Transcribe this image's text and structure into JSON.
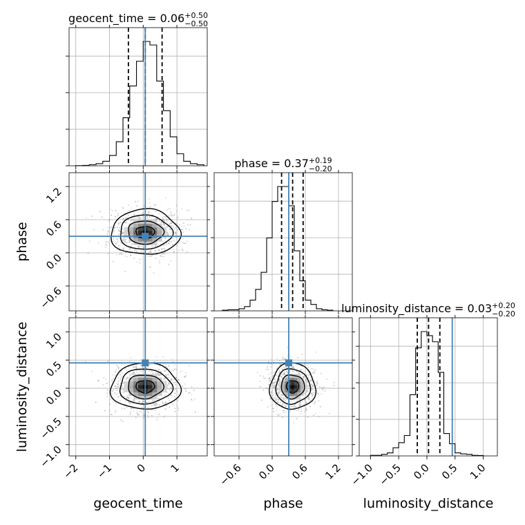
{
  "chart_data": {
    "type": "corner",
    "parameters": [
      "geocent_time",
      "phase",
      "luminosity_distance"
    ],
    "truths": {
      "geocent_time": 0.06,
      "phase": 0.3,
      "luminosity_distance": 0.45
    },
    "axes": {
      "geocent_time": {
        "range": [
          -2.2,
          1.9
        ],
        "ticks": [
          -2,
          -1,
          0,
          1
        ],
        "tick_labels": [
          "−2",
          "−1",
          "0",
          "1"
        ]
      },
      "phase": {
        "range": [
          -1.05,
          1.45
        ],
        "ticks": [
          -0.6,
          0.0,
          0.6,
          1.2
        ],
        "tick_labels": [
          "−0.6",
          "0.0",
          "0.6",
          "1.2"
        ]
      },
      "luminosity_distance": {
        "range": [
          -1.2,
          1.25
        ],
        "ticks": [
          -1.0,
          -0.5,
          0.0,
          0.5,
          1.0
        ],
        "tick_labels": [
          "−1.0",
          "−0.5",
          "0.0",
          "0.5",
          "1.0"
        ]
      }
    },
    "marginals": [
      {
        "parameter": "geocent_time",
        "title": "geocent_time = 0.06",
        "title_sup": "+0.50",
        "title_sub": "−0.50",
        "quantiles": [
          -0.44,
          0.06,
          0.56
        ],
        "bin_edges": [
          -2.0,
          -1.8,
          -1.6,
          -1.4,
          -1.2,
          -1.0,
          -0.8,
          -0.6,
          -0.4,
          -0.2,
          0.0,
          0.2,
          0.4,
          0.6,
          0.8,
          1.0,
          1.2,
          1.4,
          1.6,
          1.8
        ],
        "counts": [
          0.1,
          0.3,
          0.8,
          1.5,
          3.2,
          7.3,
          17,
          34,
          56.5,
          74,
          88,
          85.5,
          60,
          39,
          20.5,
          8.5,
          3.2,
          1.5,
          0.8
        ]
      },
      {
        "parameter": "phase",
        "title": "phase = 0.37",
        "title_sup": "+0.19",
        "title_sub": "−0.20",
        "quantiles": [
          0.17,
          0.37,
          0.56
        ],
        "bin_edges": [
          -0.9,
          -0.8,
          -0.7,
          -0.6,
          -0.5,
          -0.4,
          -0.3,
          -0.2,
          -0.1,
          0.0,
          0.1,
          0.2,
          0.3,
          0.4,
          0.5,
          0.6,
          0.7,
          0.8,
          0.9,
          1.0,
          1.1
        ],
        "counts": [
          0.3,
          0.5,
          0.5,
          1,
          2,
          5,
          10,
          18,
          34,
          51,
          58,
          58,
          49,
          28,
          14,
          5,
          3,
          1,
          0.5,
          0.3
        ]
      },
      {
        "parameter": "luminosity_distance",
        "title": "luminosity_distance = 0.03",
        "title_sup": "+0.20",
        "title_sub": "−0.20",
        "quantiles": [
          -0.17,
          0.03,
          0.23
        ],
        "bin_edges": [
          -1.0,
          -0.9,
          -0.8,
          -0.7,
          -0.6,
          -0.5,
          -0.4,
          -0.3,
          -0.2,
          -0.1,
          0.0,
          0.1,
          0.2,
          0.3,
          0.4,
          0.5,
          0.6,
          0.7,
          0.8,
          0.9,
          1.0
        ],
        "counts": [
          0.3,
          0.3,
          0.8,
          1.5,
          4,
          6.5,
          10,
          30,
          53,
          61,
          59,
          56,
          41,
          11,
          6,
          1.5,
          1,
          0.8,
          0.3,
          0.2
        ]
      }
    ],
    "joint": [
      {
        "x": "geocent_time",
        "y": "phase",
        "center": [
          0.06,
          0.37
        ],
        "sigma": [
          0.5,
          0.2
        ]
      },
      {
        "x": "geocent_time",
        "y": "luminosity_distance",
        "center": [
          0.06,
          0.03
        ],
        "sigma": [
          0.5,
          0.2
        ]
      },
      {
        "x": "phase",
        "y": "luminosity_distance",
        "center": [
          0.37,
          0.03
        ],
        "sigma": [
          0.2,
          0.2
        ]
      }
    ],
    "xlabels": [
      "geocent_time",
      "phase",
      "luminosity_distance"
    ],
    "ylabels": [
      "phase",
      "luminosity_distance"
    ],
    "colors": {
      "truth": "#4682b4",
      "grid": "#b0b0b0"
    }
  }
}
